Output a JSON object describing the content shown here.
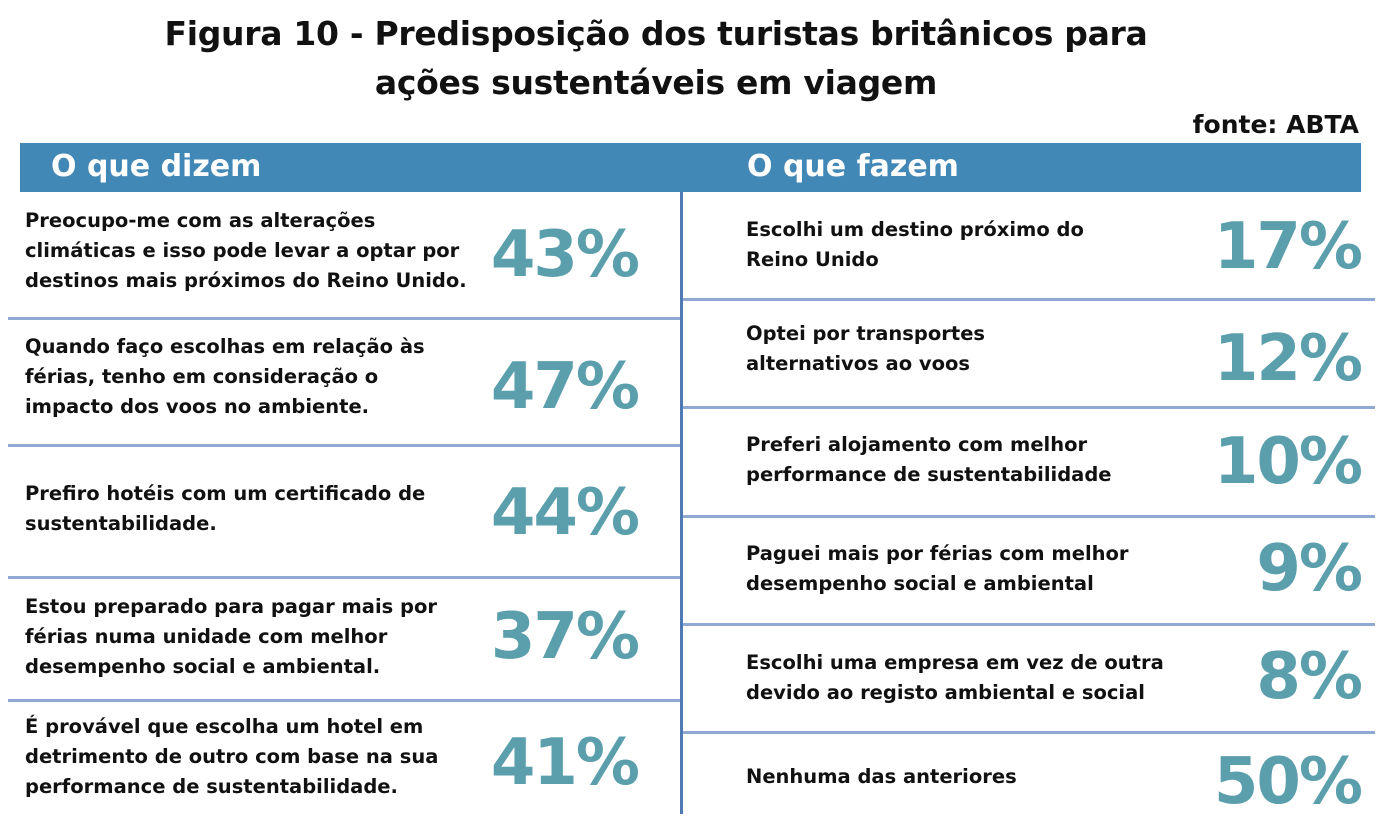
{
  "chart_data": {
    "type": "table",
    "title_line1": "Figura 10 - Predisposição dos turistas britânicos para",
    "title_line2": "ações sustentáveis em viagem",
    "source": "fonte: ABTA",
    "columns": [
      "O que dizem",
      "O que fazem"
    ],
    "left_rows": [
      {
        "label_lines": [
          "Preocupo-me com as alterações",
          "climáticas e isso pode levar a optar por",
          "destinos mais próximos do Reino Unido."
        ],
        "value": "43%"
      },
      {
        "label_lines": [
          "Quando faço escolhas em relação às",
          "férias, tenho em consideração o",
          "impacto dos voos no ambiente."
        ],
        "value": "47%"
      },
      {
        "label_lines": [
          "Prefiro hotéis com um certificado de",
          "sustentabilidade."
        ],
        "value": "44%"
      },
      {
        "label_lines": [
          "Estou preparado para pagar mais por",
          "férias numa unidade com melhor",
          "desempenho social e ambiental."
        ],
        "value": "37%"
      },
      {
        "label_lines": [
          "É provável que escolha um hotel em",
          "detrimento de outro com base na sua",
          "performance de sustentabilidade."
        ],
        "value": "41%"
      }
    ],
    "right_rows": [
      {
        "label_lines": [
          "Escolhi um destino próximo do",
          "Reino Unido"
        ],
        "value": "17%"
      },
      {
        "label_lines": [
          "Optei por transportes",
          "alternativos ao voos"
        ],
        "value": "12%"
      },
      {
        "label_lines": [
          "Preferi alojamento com melhor",
          "performance de sustentabilidade"
        ],
        "value": "10%"
      },
      {
        "label_lines": [
          "Paguei mais por férias com melhor",
          "desempenho social e ambiental"
        ],
        "value": "9%"
      },
      {
        "label_lines": [
          "Escolhi uma empresa em vez de outra",
          "devido ao registo ambiental e social"
        ],
        "value": "8%"
      },
      {
        "label_lines": [
          "Nenhuma das anteriores"
        ],
        "value": "50%"
      }
    ]
  }
}
